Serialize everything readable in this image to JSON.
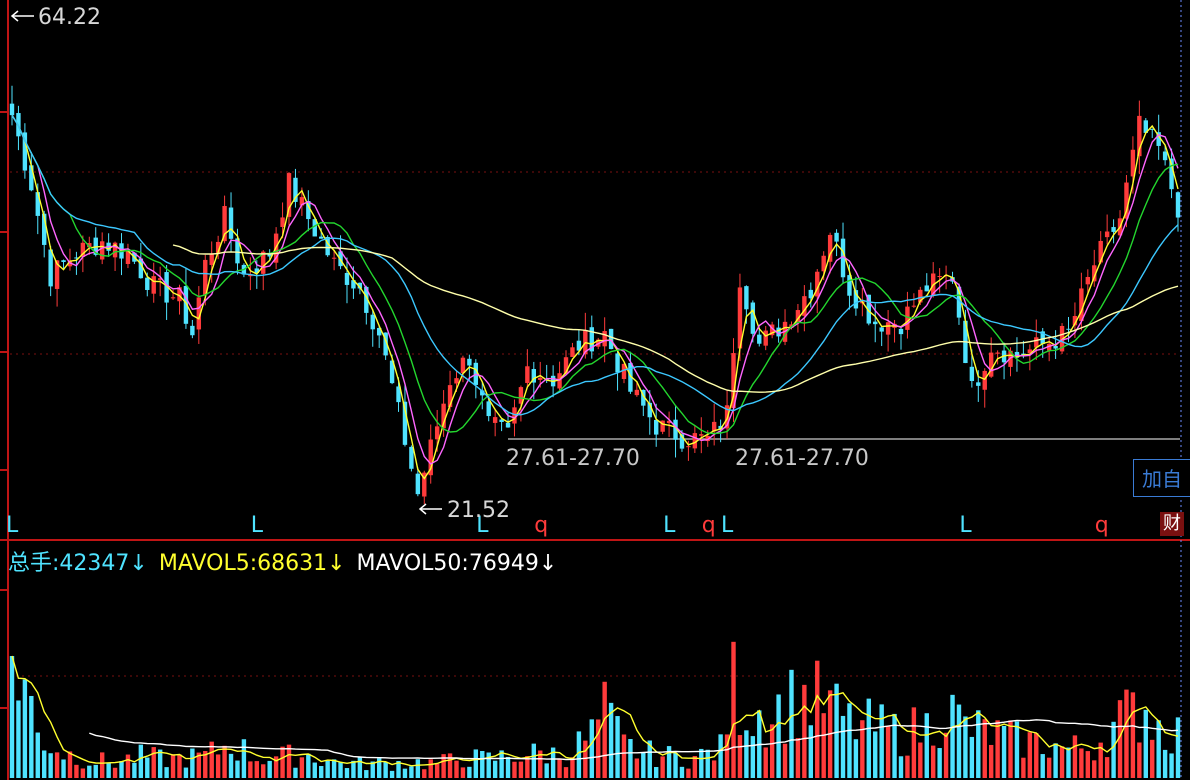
{
  "chart_data": {
    "type": "candlestick",
    "price_panel": {
      "high_label": "64.22",
      "low_label": "21.52",
      "support_labels": [
        "27.61-27.70",
        "27.61-27.70"
      ],
      "ylim": [
        19,
        66
      ],
      "markers": [
        {
          "text": "L",
          "index": 0,
          "color": "#4fe3ff"
        },
        {
          "text": "L",
          "index": 38,
          "color": "#4fe3ff"
        },
        {
          "text": "L",
          "index": 73,
          "color": "#4fe3ff"
        },
        {
          "text": "q",
          "index": 82,
          "color": "#ff3b3b"
        },
        {
          "text": "L",
          "index": 102,
          "color": "#4fe3ff"
        },
        {
          "text": "q",
          "index": 108,
          "color": "#ff3b3b"
        },
        {
          "text": "L",
          "index": 111,
          "color": "#4fe3ff"
        },
        {
          "text": "L",
          "index": 148,
          "color": "#4fe3ff"
        },
        {
          "text": "q",
          "index": 169,
          "color": "#ff3b3b"
        }
      ],
      "close_anchors": [
        [
          0,
          56
        ],
        [
          3,
          50
        ],
        [
          6,
          42
        ],
        [
          10,
          44
        ],
        [
          14,
          45
        ],
        [
          18,
          44
        ],
        [
          22,
          41
        ],
        [
          26,
          40
        ],
        [
          28,
          37
        ],
        [
          30,
          43
        ],
        [
          33,
          47
        ],
        [
          36,
          42
        ],
        [
          40,
          44
        ],
        [
          43,
          50
        ],
        [
          46,
          47
        ],
        [
          50,
          43
        ],
        [
          54,
          41
        ],
        [
          57,
          37
        ],
        [
          60,
          30
        ],
        [
          63,
          23
        ],
        [
          65,
          27
        ],
        [
          68,
          33
        ],
        [
          71,
          35
        ],
        [
          74,
          29
        ],
        [
          77,
          28
        ],
        [
          80,
          34
        ],
        [
          84,
          33
        ],
        [
          88,
          36
        ],
        [
          92,
          37
        ],
        [
          96,
          32
        ],
        [
          100,
          29
        ],
        [
          104,
          28
        ],
        [
          108,
          27.7
        ],
        [
          111,
          30
        ],
        [
          113,
          42
        ],
        [
          116,
          36
        ],
        [
          120,
          38
        ],
        [
          124,
          41
        ],
        [
          127,
          46
        ],
        [
          130,
          41
        ],
        [
          134,
          38
        ],
        [
          138,
          38
        ],
        [
          142,
          41
        ],
        [
          146,
          42
        ],
        [
          149,
          32
        ],
        [
          152,
          36
        ],
        [
          156,
          35
        ],
        [
          160,
          36
        ],
        [
          164,
          37
        ],
        [
          168,
          43
        ],
        [
          172,
          47
        ],
        [
          175,
          55
        ],
        [
          178,
          53
        ],
        [
          181,
          48
        ]
      ],
      "ma_colors": [
        "#ffff2e",
        "#ff66ff",
        "#23d62e",
        "#3cc8ff",
        "#ffffaa"
      ]
    },
    "volume_panel": {
      "ylim": [
        0,
        260000
      ],
      "anchors": [
        [
          0,
          170000
        ],
        [
          2,
          130000
        ],
        [
          4,
          60000
        ],
        [
          8,
          35000
        ],
        [
          12,
          25000
        ],
        [
          16,
          22000
        ],
        [
          20,
          30000
        ],
        [
          24,
          26000
        ],
        [
          30,
          30000
        ],
        [
          34,
          48000
        ],
        [
          38,
          28000
        ],
        [
          42,
          30000
        ],
        [
          46,
          32000
        ],
        [
          50,
          22000
        ],
        [
          54,
          20000
        ],
        [
          58,
          20000
        ],
        [
          62,
          22000
        ],
        [
          66,
          20000
        ],
        [
          70,
          28000
        ],
        [
          74,
          26000
        ],
        [
          78,
          32000
        ],
        [
          82,
          34000
        ],
        [
          86,
          32000
        ],
        [
          90,
          60000
        ],
        [
          92,
          90000
        ],
        [
          95,
          45000
        ],
        [
          98,
          35000
        ],
        [
          102,
          30000
        ],
        [
          106,
          28000
        ],
        [
          110,
          40000
        ],
        [
          112,
          130000
        ],
        [
          114,
          95000
        ],
        [
          118,
          90000
        ],
        [
          122,
          110000
        ],
        [
          126,
          105000
        ],
        [
          130,
          75000
        ],
        [
          134,
          70000
        ],
        [
          138,
          62000
        ],
        [
          142,
          70000
        ],
        [
          145,
          98000
        ],
        [
          148,
          70000
        ],
        [
          152,
          62000
        ],
        [
          156,
          52000
        ],
        [
          160,
          48000
        ],
        [
          164,
          40000
        ],
        [
          168,
          45000
        ],
        [
          172,
          80000
        ],
        [
          176,
          98000
        ],
        [
          178,
          72000
        ],
        [
          181,
          62000
        ]
      ]
    }
  },
  "volume_header": {
    "vol_label": "总手:",
    "vol_value": "42347↓",
    "mavol5_label": "MAVOL5:",
    "mavol5_value": "68631↓",
    "mavol50_label": "MAVOL50:",
    "mavol50_value": "76949↓"
  },
  "buttons": {
    "add_label": "加自",
    "cai_label": "财"
  },
  "colors": {
    "up": "#ff3b3b",
    "down": "#4fe3ff",
    "axis": "#c01515",
    "support_line": "#a8a8a8"
  }
}
